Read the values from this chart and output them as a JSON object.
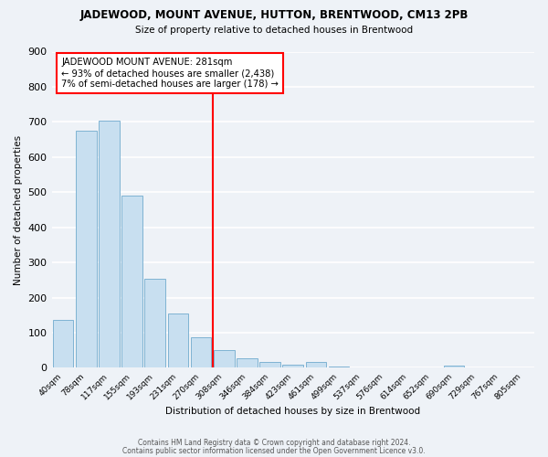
{
  "title": "JADEWOOD, MOUNT AVENUE, HUTTON, BRENTWOOD, CM13 2PB",
  "subtitle": "Size of property relative to detached houses in Brentwood",
  "xlabel": "Distribution of detached houses by size in Brentwood",
  "ylabel": "Number of detached properties",
  "bar_labels": [
    "40sqm",
    "78sqm",
    "117sqm",
    "155sqm",
    "193sqm",
    "231sqm",
    "270sqm",
    "308sqm",
    "346sqm",
    "384sqm",
    "423sqm",
    "461sqm",
    "499sqm",
    "537sqm",
    "576sqm",
    "614sqm",
    "652sqm",
    "690sqm",
    "729sqm",
    "767sqm",
    "805sqm"
  ],
  "bar_values": [
    137,
    675,
    703,
    491,
    253,
    154,
    86,
    50,
    28,
    17,
    10,
    18,
    5,
    0,
    0,
    0,
    0,
    7,
    0,
    0,
    0
  ],
  "bar_color": "#c8dff0",
  "bar_edge_color": "#7fb3d3",
  "vline_x": 7.0,
  "vline_color": "red",
  "annotation_title": "JADEWOOD MOUNT AVENUE: 281sqm",
  "annotation_line1": "← 93% of detached houses are smaller (2,438)",
  "annotation_line2": "7% of semi-detached houses are larger (178) →",
  "annotation_box_color": "white",
  "annotation_box_edge": "red",
  "ylim": [
    0,
    900
  ],
  "yticks": [
    0,
    100,
    200,
    300,
    400,
    500,
    600,
    700,
    800,
    900
  ],
  "footer1": "Contains HM Land Registry data © Crown copyright and database right 2024.",
  "footer2": "Contains public sector information licensed under the Open Government Licence v3.0.",
  "background_color": "#eef2f7",
  "grid_color": "white"
}
